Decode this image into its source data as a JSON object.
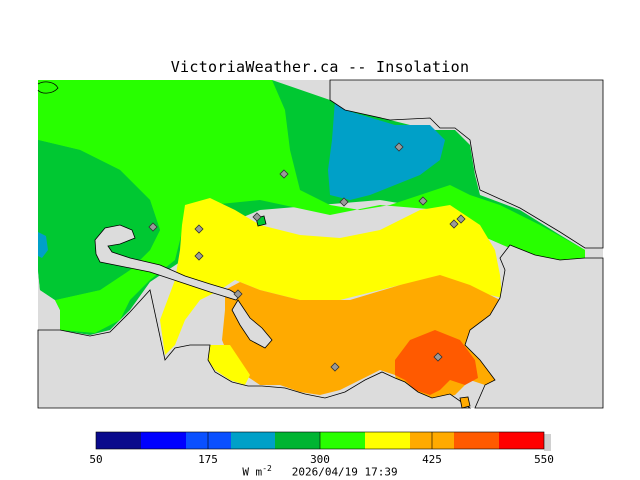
{
  "title": "VictoriaWeather.ca -- Insolation",
  "legend": {
    "ticks": [
      "50",
      "175",
      "300",
      "425",
      "550"
    ],
    "colors": [
      "#0a0a8c",
      "#1e1ea0",
      "#0000ff",
      "#0a50ff",
      "#00a0c8",
      "#00b432",
      "#00c800",
      "#28ff00",
      "#aaff00",
      "#ffff00",
      "#ffaa00",
      "#ff5a00",
      "#ff0000"
    ],
    "units": "W m",
    "units_exp": "-2",
    "timestamp": "2026/04/19 17:39"
  },
  "map": {
    "land_background": "#dcdcdc",
    "station_marker_color": "#9a9a9a",
    "station_count": 13
  }
}
